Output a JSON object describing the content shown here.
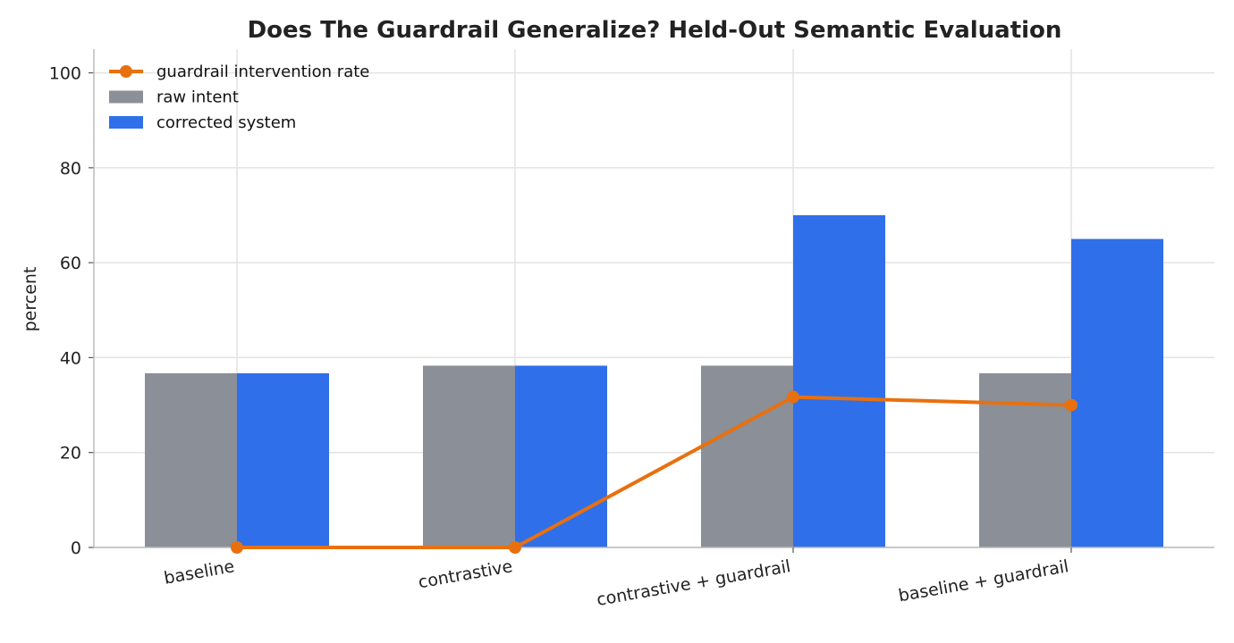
{
  "chart_data": {
    "type": "bar",
    "title": "Does The Guardrail Generalize? Held-Out Semantic Evaluation",
    "xlabel": "",
    "ylabel": "percent",
    "categories": [
      "baseline",
      "contrastive",
      "contrastive + guardrail",
      "baseline + guardrail"
    ],
    "ylim": [
      0,
      105
    ],
    "yticks": [
      0,
      20,
      40,
      60,
      80,
      100
    ],
    "grid": true,
    "legend_position": "top-left",
    "series": [
      {
        "name": "raw intent",
        "type": "bar",
        "color": "#8a8f98",
        "values": [
          36.7,
          38.3,
          38.3,
          36.7
        ]
      },
      {
        "name": "corrected system",
        "type": "bar",
        "color": "#2f6fea",
        "values": [
          36.7,
          38.3,
          70.0,
          65.0
        ]
      },
      {
        "name": "guardrail intervention rate",
        "type": "line",
        "color": "#e8700e",
        "values": [
          0.0,
          0.0,
          31.7,
          30.0
        ]
      }
    ]
  }
}
